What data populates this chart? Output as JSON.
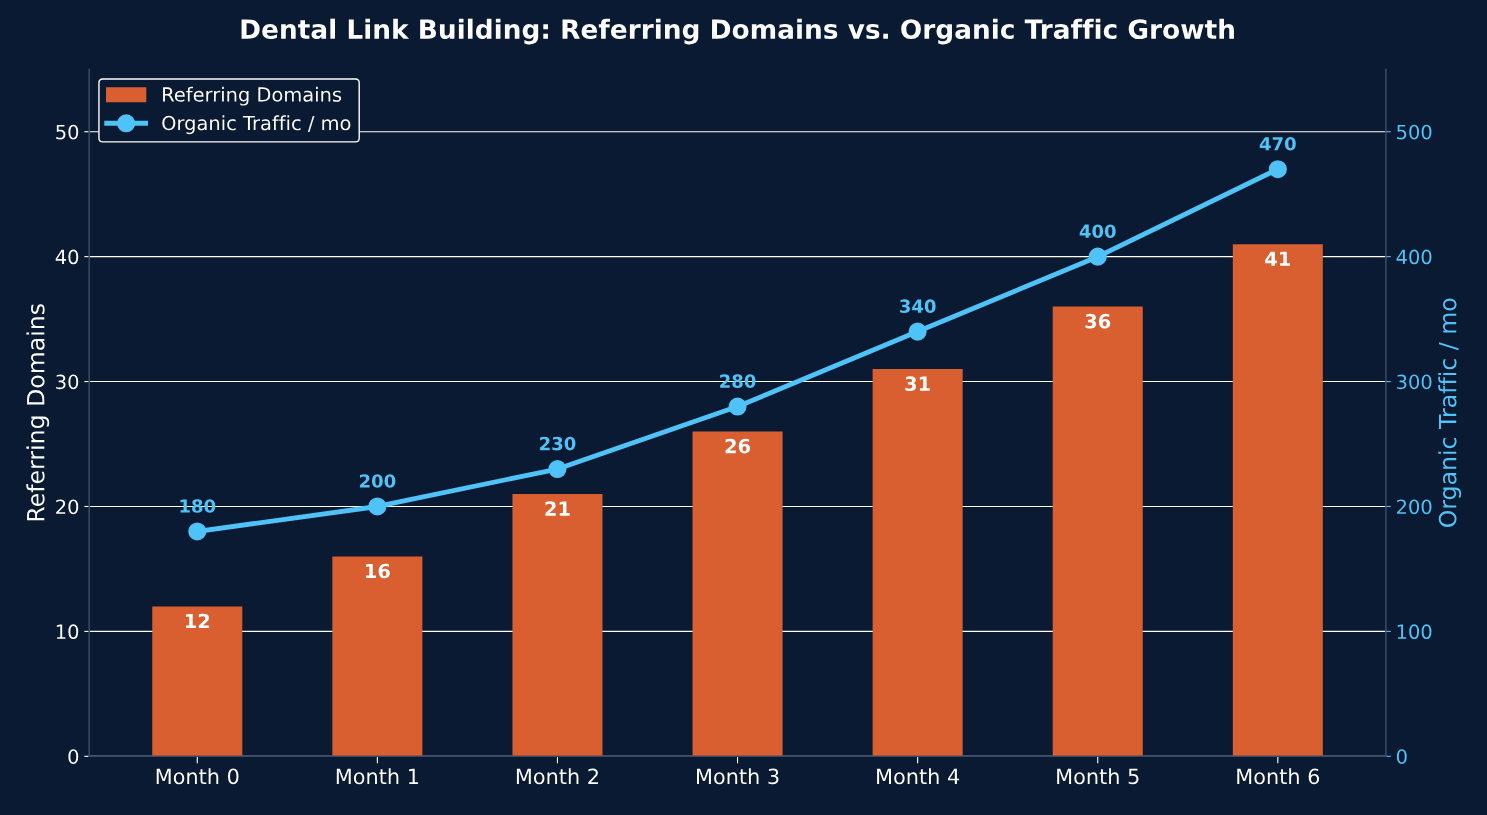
{
  "chart_data": {
    "type": "bar",
    "title": "Dental Link Building: Referring Domains vs. Organic Traffic Growth",
    "categories": [
      "Month 0",
      "Month 1",
      "Month 2",
      "Month 3",
      "Month 4",
      "Month 5",
      "Month 6"
    ],
    "series": [
      {
        "name": "Referring Domains",
        "color": "#d95f30",
        "values": [
          12,
          16,
          21,
          26,
          31,
          36,
          41
        ]
      },
      {
        "name": "Organic Traffic / mo",
        "type": "line",
        "axis": "y2",
        "color": "#4fc3f7",
        "marker": "circle",
        "line_style": "solid",
        "values": [
          180,
          200,
          230,
          280,
          340,
          400,
          470
        ]
      }
    ],
    "ylabel": "Referring Domains",
    "y2label": "Organic Traffic / mo",
    "ylim": [
      0,
      55
    ],
    "yticks": [
      0,
      10,
      20,
      30,
      40,
      50
    ],
    "y2lim": [
      0,
      550
    ],
    "y2ticks": [
      0,
      100,
      200,
      300,
      400,
      500
    ],
    "grid": "y",
    "legend": "top left",
    "data_labels": true
  }
}
